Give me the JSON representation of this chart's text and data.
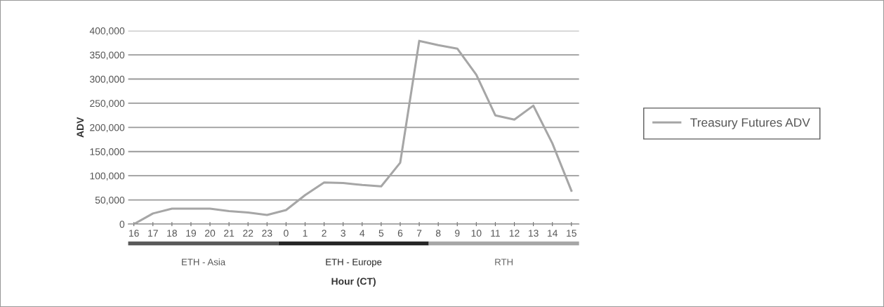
{
  "chart_data": {
    "type": "line",
    "xlabel": "Hour (CT)",
    "ylabel": "ADV",
    "categories": [
      "16",
      "17",
      "18",
      "19",
      "20",
      "21",
      "22",
      "23",
      "0",
      "1",
      "2",
      "3",
      "4",
      "5",
      "6",
      "7",
      "8",
      "9",
      "10",
      "11",
      "12",
      "13",
      "14",
      "15"
    ],
    "series": [
      {
        "name": "Treasury Futures ADV",
        "color": "#a6a6a6",
        "values": [
          0,
          22000,
          32000,
          32000,
          32000,
          27000,
          24000,
          19000,
          29000,
          60000,
          86000,
          85000,
          81000,
          78000,
          127000,
          379000,
          370000,
          363000,
          309000,
          225000,
          216000,
          245000,
          167000,
          69000
        ]
      }
    ],
    "ylim": [
      0,
      400000
    ],
    "yticks": [
      {
        "value": 0,
        "label": "0"
      },
      {
        "value": 50000,
        "label": "50,000"
      },
      {
        "value": 100000,
        "label": "100,000"
      },
      {
        "value": 150000,
        "label": "150,000"
      },
      {
        "value": 200000,
        "label": "200,000"
      },
      {
        "value": 250000,
        "label": "250,000"
      },
      {
        "value": 300000,
        "label": "300,000"
      },
      {
        "value": 350000,
        "label": "350,000"
      },
      {
        "value": 400000,
        "label": "400,000"
      }
    ],
    "annotations": [
      "ETH - Asia",
      "ETH - Europe",
      "RTH"
    ],
    "grid": "y",
    "legend": "right",
    "marker": "none",
    "line_style": "solid"
  }
}
